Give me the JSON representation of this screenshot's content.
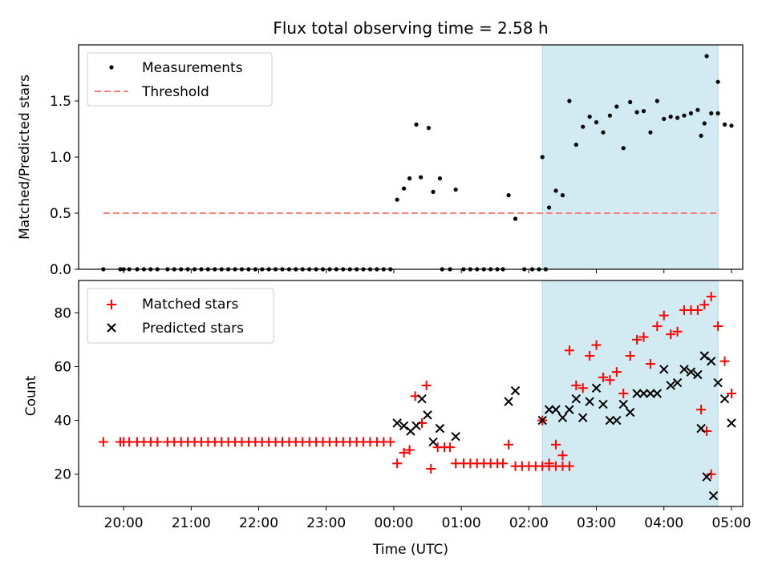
{
  "chart_data": [
    {
      "type": "scatter",
      "title": "Flux total observing time = 2.58 h",
      "xlabel": "",
      "ylabel": "Matched/Predicted stars",
      "ylim": [
        0,
        2.0
      ],
      "yticks": [
        "0.0",
        "0.5",
        "1.0",
        "1.5"
      ],
      "xlim": [
        "19:20",
        "05:10"
      ],
      "shaded_region": [
        "02:12",
        "04:48"
      ],
      "shade_color": "#add8e6",
      "legend_position": "upper-left",
      "threshold": {
        "name": "Threshold",
        "value": 0.5,
        "x_range": [
          "19:42",
          "04:48"
        ],
        "color": "#ff7f7f",
        "style": "dashed"
      },
      "series": [
        {
          "name": "Measurements",
          "color": "#000000",
          "marker": "dot",
          "points": [
            [
              "19:42",
              0
            ],
            [
              "19:57",
              0
            ],
            [
              "20:00",
              0
            ],
            [
              "20:05",
              0
            ],
            [
              "20:12",
              0
            ],
            [
              "20:18",
              0
            ],
            [
              "20:24",
              0
            ],
            [
              "20:30",
              0
            ],
            [
              "20:39",
              0
            ],
            [
              "20:45",
              0
            ],
            [
              "20:51",
              0
            ],
            [
              "20:57",
              0
            ],
            [
              "21:03",
              0
            ],
            [
              "21:09",
              0
            ],
            [
              "21:15",
              0
            ],
            [
              "21:21",
              0
            ],
            [
              "21:27",
              0
            ],
            [
              "21:33",
              0
            ],
            [
              "21:39",
              0
            ],
            [
              "21:45",
              0
            ],
            [
              "21:51",
              0
            ],
            [
              "21:57",
              0
            ],
            [
              "22:03",
              0
            ],
            [
              "22:09",
              0
            ],
            [
              "22:15",
              0
            ],
            [
              "22:21",
              0
            ],
            [
              "22:27",
              0
            ],
            [
              "22:33",
              0
            ],
            [
              "22:39",
              0
            ],
            [
              "22:45",
              0
            ],
            [
              "22:51",
              0
            ],
            [
              "22:57",
              0
            ],
            [
              "23:03",
              0
            ],
            [
              "23:09",
              0
            ],
            [
              "23:15",
              0
            ],
            [
              "23:21",
              0
            ],
            [
              "23:27",
              0
            ],
            [
              "23:33",
              0
            ],
            [
              "23:39",
              0
            ],
            [
              "23:45",
              0
            ],
            [
              "23:51",
              0
            ],
            [
              "23:57",
              0
            ],
            [
              "00:03",
              0.62
            ],
            [
              "00:09",
              0.72
            ],
            [
              "00:14",
              0.81
            ],
            [
              "00:20",
              1.29
            ],
            [
              "00:24",
              0.82
            ],
            [
              "00:31",
              1.26
            ],
            [
              "00:35",
              0.69
            ],
            [
              "00:41",
              0.81
            ],
            [
              "00:43",
              0
            ],
            [
              "00:50",
              0
            ],
            [
              "00:55",
              0.71
            ],
            [
              "01:02",
              0
            ],
            [
              "01:08",
              0
            ],
            [
              "01:14",
              0
            ],
            [
              "01:20",
              0
            ],
            [
              "01:26",
              0
            ],
            [
              "01:32",
              0
            ],
            [
              "01:37",
              0
            ],
            [
              "01:42",
              0.66
            ],
            [
              "01:48",
              0.45
            ],
            [
              "01:56",
              0
            ],
            [
              "02:03",
              0
            ],
            [
              "02:09",
              0
            ],
            [
              "02:15",
              0
            ],
            [
              "02:12",
              1.0
            ],
            [
              "02:18",
              0.55
            ],
            [
              "02:24",
              0.7
            ],
            [
              "02:30",
              0.66
            ],
            [
              "02:36",
              1.5
            ],
            [
              "02:42",
              1.11
            ],
            [
              "02:48",
              1.27
            ],
            [
              "02:54",
              1.36
            ],
            [
              "03:00",
              1.31
            ],
            [
              "03:06",
              1.22
            ],
            [
              "03:12",
              1.37
            ],
            [
              "03:18",
              1.45
            ],
            [
              "03:24",
              1.08
            ],
            [
              "03:30",
              1.49
            ],
            [
              "03:36",
              1.4
            ],
            [
              "03:42",
              1.41
            ],
            [
              "03:48",
              1.22
            ],
            [
              "03:54",
              1.5
            ],
            [
              "04:00",
              1.34
            ],
            [
              "04:06",
              1.36
            ],
            [
              "04:12",
              1.35
            ],
            [
              "04:18",
              1.37
            ],
            [
              "04:24",
              1.39
            ],
            [
              "04:30",
              1.42
            ],
            [
              "04:36",
              1.3
            ],
            [
              "04:42",
              1.39
            ],
            [
              "04:48",
              1.39
            ],
            [
              "04:54",
              1.29
            ],
            [
              "05:00",
              1.28
            ],
            [
              "04:33",
              1.19
            ],
            [
              "04:38",
              1.9
            ],
            [
              "04:48",
              1.67
            ]
          ]
        }
      ]
    },
    {
      "type": "scatter",
      "title": "",
      "xlabel": "Time (UTC)",
      "ylabel": "Count",
      "ylim": [
        8,
        92
      ],
      "yticks": [
        "20",
        "40",
        "60",
        "80"
      ],
      "xlim": [
        "19:20",
        "05:10"
      ],
      "xticks": [
        "20:00",
        "21:00",
        "22:00",
        "23:00",
        "00:00",
        "01:00",
        "02:00",
        "03:00",
        "04:00",
        "05:00"
      ],
      "shaded_region": [
        "02:12",
        "04:48"
      ],
      "shade_color": "#add8e6",
      "legend_position": "upper-left",
      "series": [
        {
          "name": "Matched stars",
          "color": "#ff0000",
          "marker": "plus",
          "points": [
            [
              "19:42",
              32
            ],
            [
              "19:57",
              32
            ],
            [
              "20:00",
              32
            ],
            [
              "20:05",
              32
            ],
            [
              "20:12",
              32
            ],
            [
              "20:18",
              32
            ],
            [
              "20:24",
              32
            ],
            [
              "20:30",
              32
            ],
            [
              "20:39",
              32
            ],
            [
              "20:45",
              32
            ],
            [
              "20:51",
              32
            ],
            [
              "20:57",
              32
            ],
            [
              "21:03",
              32
            ],
            [
              "21:09",
              32
            ],
            [
              "21:15",
              32
            ],
            [
              "21:21",
              32
            ],
            [
              "21:27",
              32
            ],
            [
              "21:33",
              32
            ],
            [
              "21:39",
              32
            ],
            [
              "21:45",
              32
            ],
            [
              "21:51",
              32
            ],
            [
              "21:57",
              32
            ],
            [
              "22:03",
              32
            ],
            [
              "22:09",
              32
            ],
            [
              "22:15",
              32
            ],
            [
              "22:21",
              32
            ],
            [
              "22:27",
              32
            ],
            [
              "22:33",
              32
            ],
            [
              "22:39",
              32
            ],
            [
              "22:45",
              32
            ],
            [
              "22:51",
              32
            ],
            [
              "22:57",
              32
            ],
            [
              "23:03",
              32
            ],
            [
              "23:09",
              32
            ],
            [
              "23:15",
              32
            ],
            [
              "23:21",
              32
            ],
            [
              "23:27",
              32
            ],
            [
              "23:33",
              32
            ],
            [
              "23:39",
              32
            ],
            [
              "23:45",
              32
            ],
            [
              "23:51",
              32
            ],
            [
              "23:57",
              32
            ],
            [
              "00:03",
              24
            ],
            [
              "00:09",
              28
            ],
            [
              "00:14",
              29
            ],
            [
              "00:19",
              49
            ],
            [
              "00:25",
              39
            ],
            [
              "00:29",
              53
            ],
            [
              "00:33",
              22
            ],
            [
              "00:39",
              30
            ],
            [
              "00:45",
              30
            ],
            [
              "00:50",
              30
            ],
            [
              "00:55",
              24
            ],
            [
              "01:02",
              24
            ],
            [
              "01:08",
              24
            ],
            [
              "01:14",
              24
            ],
            [
              "01:20",
              24
            ],
            [
              "01:26",
              24
            ],
            [
              "01:32",
              24
            ],
            [
              "01:37",
              24
            ],
            [
              "01:42",
              31
            ],
            [
              "01:48",
              23
            ],
            [
              "01:54",
              23
            ],
            [
              "02:00",
              23
            ],
            [
              "02:06",
              23
            ],
            [
              "02:12",
              23
            ],
            [
              "02:18",
              23
            ],
            [
              "02:24",
              23
            ],
            [
              "02:30",
              23
            ],
            [
              "02:36",
              23
            ],
            [
              "02:12",
              40
            ],
            [
              "02:18",
              24
            ],
            [
              "02:24",
              31
            ],
            [
              "02:30",
              27
            ],
            [
              "02:36",
              66
            ],
            [
              "02:42",
              53
            ],
            [
              "02:48",
              52
            ],
            [
              "02:54",
              64
            ],
            [
              "03:00",
              68
            ],
            [
              "03:06",
              56
            ],
            [
              "03:12",
              55
            ],
            [
              "03:18",
              58
            ],
            [
              "03:24",
              50
            ],
            [
              "03:30",
              64
            ],
            [
              "03:36",
              70
            ],
            [
              "03:42",
              71
            ],
            [
              "03:48",
              61
            ],
            [
              "03:54",
              75
            ],
            [
              "04:00",
              79
            ],
            [
              "04:06",
              72
            ],
            [
              "04:12",
              73
            ],
            [
              "04:18",
              81
            ],
            [
              "04:24",
              81
            ],
            [
              "04:30",
              81
            ],
            [
              "04:36",
              83
            ],
            [
              "04:42",
              86
            ],
            [
              "04:48",
              75
            ],
            [
              "04:54",
              62
            ],
            [
              "05:00",
              50
            ],
            [
              "04:33",
              44
            ],
            [
              "04:38",
              36
            ],
            [
              "04:42",
              20
            ]
          ]
        },
        {
          "name": "Predicted stars",
          "color": "#000000",
          "marker": "x",
          "points": [
            [
              "00:03",
              39
            ],
            [
              "00:09",
              38
            ],
            [
              "00:15",
              36
            ],
            [
              "00:20",
              38
            ],
            [
              "00:25",
              48
            ],
            [
              "00:30",
              42
            ],
            [
              "00:35",
              32
            ],
            [
              "00:41",
              37
            ],
            [
              "00:55",
              34
            ],
            [
              "01:42",
              47
            ],
            [
              "01:48",
              51
            ],
            [
              "02:12",
              40
            ],
            [
              "02:18",
              44
            ],
            [
              "02:24",
              44
            ],
            [
              "02:30",
              41
            ],
            [
              "02:36",
              44
            ],
            [
              "02:42",
              48
            ],
            [
              "02:48",
              41
            ],
            [
              "02:54",
              47
            ],
            [
              "03:00",
              52
            ],
            [
              "03:06",
              46
            ],
            [
              "03:12",
              40
            ],
            [
              "03:18",
              40
            ],
            [
              "03:24",
              46
            ],
            [
              "03:30",
              43
            ],
            [
              "03:36",
              50
            ],
            [
              "03:42",
              50
            ],
            [
              "03:48",
              50
            ],
            [
              "03:54",
              50
            ],
            [
              "04:00",
              59
            ],
            [
              "04:06",
              53
            ],
            [
              "04:12",
              54
            ],
            [
              "04:18",
              59
            ],
            [
              "04:24",
              58
            ],
            [
              "04:30",
              57
            ],
            [
              "04:36",
              64
            ],
            [
              "04:42",
              62
            ],
            [
              "04:48",
              54
            ],
            [
              "04:54",
              48
            ],
            [
              "05:00",
              39
            ],
            [
              "04:33",
              37
            ],
            [
              "04:38",
              19
            ],
            [
              "04:44",
              12
            ]
          ]
        }
      ]
    }
  ]
}
